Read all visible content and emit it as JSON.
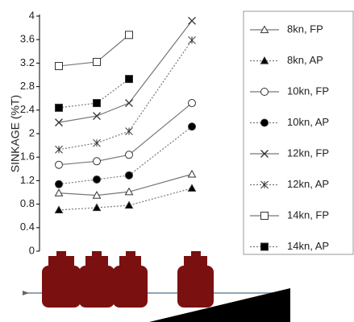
{
  "chart_data": {
    "type": "line",
    "y_label": "SINKAGE (%T)",
    "categories": [
      null,
      null,
      null,
      null
    ],
    "ylim": [
      0,
      4
    ],
    "yticks": [
      0,
      0.4,
      0.8,
      1.2,
      1.6,
      2,
      2.4,
      2.8,
      3.2,
      3.6,
      4
    ],
    "series": [
      {
        "name": "8kn, FP",
        "color": "#777777",
        "marker": "triangle",
        "filled": false,
        "dashed": false,
        "values": [
          0.99,
          0.95,
          1.01,
          1.31
        ]
      },
      {
        "name": "8kn, AP",
        "color": "#777777",
        "marker": "triangle",
        "filled": true,
        "dashed": true,
        "values": [
          0.7,
          0.74,
          0.78,
          1.07
        ]
      },
      {
        "name": "10kn, FP",
        "color": "#777777",
        "marker": "circle",
        "filled": false,
        "dashed": false,
        "values": [
          1.47,
          1.53,
          1.64,
          2.52
        ]
      },
      {
        "name": "10kn, AP",
        "color": "#777777",
        "marker": "circle",
        "filled": true,
        "dashed": true,
        "values": [
          1.14,
          1.22,
          1.29,
          2.12
        ]
      },
      {
        "name": "12kn, FP",
        "color": "#777777",
        "marker": "x",
        "filled": false,
        "dashed": false,
        "values": [
          2.19,
          2.3,
          2.52,
          3.92
        ]
      },
      {
        "name": "12kn, AP",
        "color": "#777777",
        "marker": "star",
        "filled": false,
        "dashed": true,
        "values": [
          1.73,
          1.84,
          2.04,
          3.59
        ]
      },
      {
        "name": "14kn, FP",
        "color": "#777777",
        "marker": "square",
        "filled": false,
        "dashed": false,
        "values": [
          3.15,
          3.22,
          3.68,
          null
        ]
      },
      {
        "name": "14kn, AP",
        "color": "#777777",
        "marker": "square",
        "filled": true,
        "dashed": true,
        "values": [
          2.44,
          2.52,
          2.93,
          null
        ]
      }
    ]
  }
}
